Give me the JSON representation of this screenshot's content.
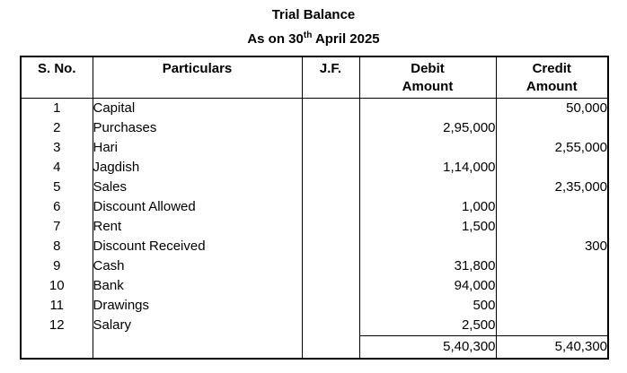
{
  "title": "Trial Balance",
  "subtitle": {
    "prefix": "As on 30",
    "superscript": "th",
    "suffix": " April 2025"
  },
  "table": {
    "headers": {
      "sno": "S. No.",
      "particulars": "Particulars",
      "jf": "J.F.",
      "debit_line1": "Debit",
      "debit_line2": "Amount",
      "credit_line1": "Credit",
      "credit_line2": "Amount"
    },
    "rows": [
      {
        "sno": "1",
        "particulars": "Capital",
        "jf": "",
        "debit": "",
        "credit": "50,000"
      },
      {
        "sno": "2",
        "particulars": "Purchases",
        "jf": "",
        "debit": "2,95,000",
        "credit": ""
      },
      {
        "sno": "3",
        "particulars": "Hari",
        "jf": "",
        "debit": "",
        "credit": "2,55,000"
      },
      {
        "sno": "4",
        "particulars": "Jagdish",
        "jf": "",
        "debit": "1,14,000",
        "credit": ""
      },
      {
        "sno": "5",
        "particulars": "Sales",
        "jf": "",
        "debit": "",
        "credit": "2,35,000"
      },
      {
        "sno": "6",
        "particulars": "Discount Allowed",
        "jf": "",
        "debit": "1,000",
        "credit": ""
      },
      {
        "sno": "7",
        "particulars": "Rent",
        "jf": "",
        "debit": "1,500",
        "credit": ""
      },
      {
        "sno": "8",
        "particulars": "Discount Received",
        "jf": "",
        "debit": "",
        "credit": "300"
      },
      {
        "sno": "9",
        "particulars": "Cash",
        "jf": "",
        "debit": "31,800",
        "credit": ""
      },
      {
        "sno": "10",
        "particulars": "Bank",
        "jf": "",
        "debit": "94,000",
        "credit": ""
      },
      {
        "sno": "11",
        "particulars": "Drawings",
        "jf": "",
        "debit": "500",
        "credit": ""
      },
      {
        "sno": "12",
        "particulars": "Salary",
        "jf": "",
        "debit": "2,500",
        "credit": ""
      }
    ],
    "totals": {
      "debit": "5,40,300",
      "credit": "5,40,300"
    }
  }
}
